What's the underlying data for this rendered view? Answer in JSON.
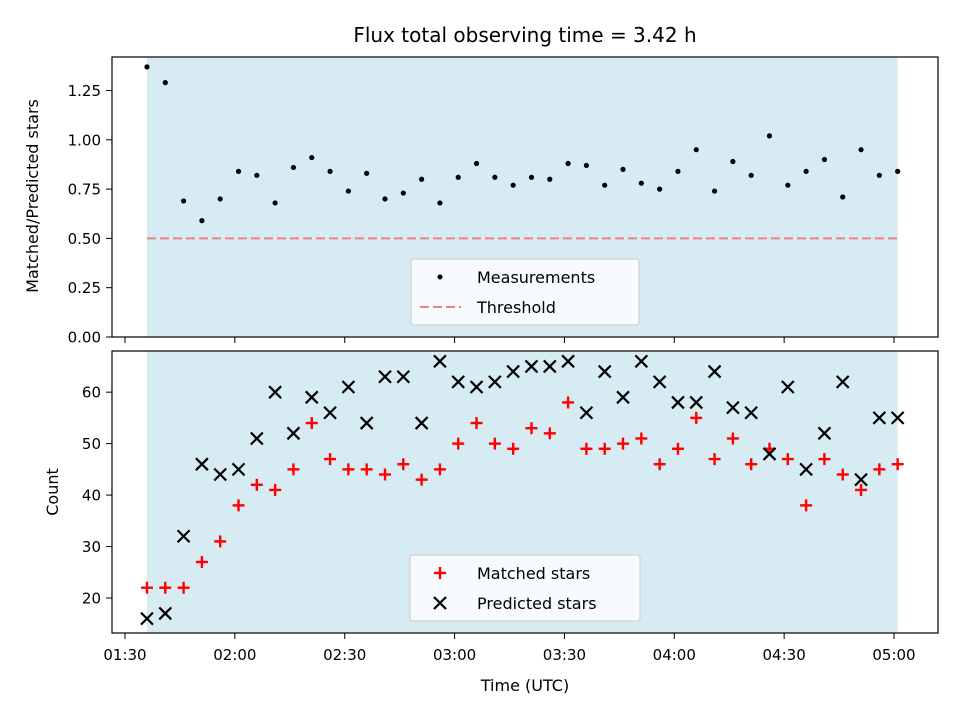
{
  "chart_data": [
    {
      "type": "scatter",
      "title": "Flux total observing time = 3.42 h",
      "xlabel": "",
      "ylabel": "Matched/Predicted stars",
      "ylim": [
        0.0,
        1.42
      ],
      "yticks": [
        "0.00",
        "0.25",
        "0.50",
        "0.75",
        "1.00",
        "1.25"
      ],
      "grid": false,
      "legend": "bottom-center",
      "shaded_region": {
        "x_start": "01:36",
        "x_end": "05:01",
        "color": "#add8e6",
        "opacity": 0.5
      },
      "threshold": {
        "name": "Threshold",
        "value": 0.5,
        "color": "#f08080",
        "style": "dashed"
      },
      "series": [
        {
          "name": "Measurements",
          "color": "#000000",
          "marker": "dot",
          "x": [
            "01:36",
            "01:41",
            "01:46",
            "01:51",
            "01:56",
            "02:01",
            "02:06",
            "02:11",
            "02:16",
            "02:21",
            "02:26",
            "02:31",
            "02:36",
            "02:41",
            "02:46",
            "02:51",
            "02:56",
            "03:01",
            "03:06",
            "03:11",
            "03:16",
            "03:21",
            "03:26",
            "03:31",
            "03:36",
            "03:41",
            "03:46",
            "03:51",
            "03:56",
            "04:01",
            "04:06",
            "04:11",
            "04:16",
            "04:21",
            "04:26",
            "04:31",
            "04:36",
            "04:41",
            "04:46",
            "04:51",
            "04:56",
            "05:01"
          ],
          "y": [
            1.37,
            1.29,
            0.69,
            0.59,
            0.7,
            0.84,
            0.82,
            0.68,
            0.86,
            0.91,
            0.84,
            0.74,
            0.83,
            0.7,
            0.73,
            0.8,
            0.68,
            0.81,
            0.88,
            0.81,
            0.77,
            0.81,
            0.8,
            0.88,
            0.87,
            0.77,
            0.85,
            0.78,
            0.75,
            0.84,
            0.95,
            0.74,
            0.89,
            0.82,
            1.02,
            0.77,
            0.84,
            0.9,
            0.71,
            0.95,
            0.82,
            0.84
          ]
        }
      ]
    },
    {
      "type": "scatter",
      "xlabel": "Time (UTC)",
      "ylabel": "Count",
      "ylim": [
        13.2,
        68.0
      ],
      "yticks": [
        "20",
        "30",
        "40",
        "50",
        "60"
      ],
      "xticks": [
        "01:30",
        "02:00",
        "02:30",
        "03:00",
        "03:30",
        "04:00",
        "04:30",
        "05:00"
      ],
      "grid": false,
      "legend": "bottom-center",
      "shaded_region": {
        "x_start": "01:36",
        "x_end": "05:01",
        "color": "#add8e6",
        "opacity": 0.5
      },
      "series": [
        {
          "name": "Matched stars",
          "color": "#ff0000",
          "marker": "plus",
          "x": [
            "01:36",
            "01:41",
            "01:46",
            "01:51",
            "01:56",
            "02:01",
            "02:06",
            "02:11",
            "02:16",
            "02:21",
            "02:26",
            "02:31",
            "02:36",
            "02:41",
            "02:46",
            "02:51",
            "02:56",
            "03:01",
            "03:06",
            "03:11",
            "03:16",
            "03:21",
            "03:26",
            "03:31",
            "03:36",
            "03:41",
            "03:46",
            "03:51",
            "03:56",
            "04:01",
            "04:06",
            "04:11",
            "04:16",
            "04:21",
            "04:26",
            "04:31",
            "04:36",
            "04:41",
            "04:46",
            "04:51",
            "04:56",
            "05:01"
          ],
          "y": [
            22,
            22,
            22,
            27,
            31,
            38,
            42,
            41,
            45,
            54,
            47,
            45,
            45,
            44,
            46,
            43,
            45,
            50,
            54,
            50,
            49,
            53,
            52,
            58,
            49,
            49,
            50,
            51,
            46,
            49,
            55,
            47,
            51,
            46,
            49,
            47,
            38,
            47,
            44,
            41,
            45,
            46
          ]
        },
        {
          "name": "Predicted stars",
          "color": "#000000",
          "marker": "x",
          "x": [
            "01:36",
            "01:41",
            "01:46",
            "01:51",
            "01:56",
            "02:01",
            "02:06",
            "02:11",
            "02:16",
            "02:21",
            "02:26",
            "02:31",
            "02:36",
            "02:41",
            "02:46",
            "02:51",
            "02:56",
            "03:01",
            "03:06",
            "03:11",
            "03:16",
            "03:21",
            "03:26",
            "03:31",
            "03:36",
            "03:41",
            "03:46",
            "03:51",
            "03:56",
            "04:01",
            "04:06",
            "04:11",
            "04:16",
            "04:21",
            "04:26",
            "04:31",
            "04:36",
            "04:41",
            "04:46",
            "04:51",
            "04:56",
            "05:01"
          ],
          "y": [
            16,
            17,
            32,
            46,
            44,
            45,
            51,
            60,
            52,
            59,
            56,
            61,
            54,
            63,
            63,
            54,
            66,
            62,
            61,
            62,
            64,
            65,
            65,
            66,
            56,
            64,
            59,
            66,
            62,
            58,
            58,
            64,
            57,
            56,
            48,
            61,
            45,
            52,
            62,
            43,
            55,
            55
          ]
        }
      ]
    }
  ]
}
